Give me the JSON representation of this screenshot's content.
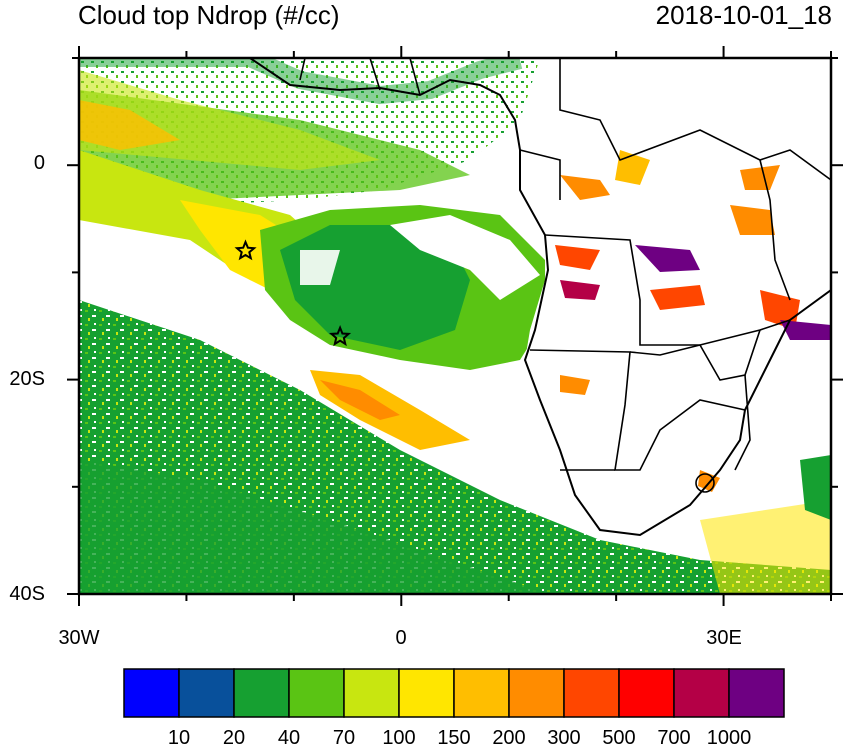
{
  "title": "Cloud top Ndrop (#/cc)",
  "datetime": "2018-10-01_18",
  "map": {
    "lon_range": [
      -30,
      40
    ],
    "lat_range": [
      -40,
      10
    ],
    "lat_tick_labels": [
      "0",
      "20S",
      "40S"
    ],
    "lon_tick_labels": [
      "30W",
      "0",
      "30E"
    ],
    "markers": [
      {
        "name": "star-marker-north",
        "lon": -14.5,
        "lat": -8
      },
      {
        "name": "star-marker-south",
        "lon": -5.7,
        "lat": -16
      }
    ]
  },
  "colorbar": {
    "colors": [
      "#0000ff",
      "#08509b",
      "#16a031",
      "#5ac414",
      "#c8e610",
      "#ffe600",
      "#ffbe00",
      "#ff8c00",
      "#ff4600",
      "#ff0000",
      "#b40046",
      "#6e0082"
    ],
    "labels": [
      "10",
      "20",
      "40",
      "70",
      "100",
      "150",
      "200",
      "300",
      "500",
      "700",
      "1000"
    ]
  }
}
